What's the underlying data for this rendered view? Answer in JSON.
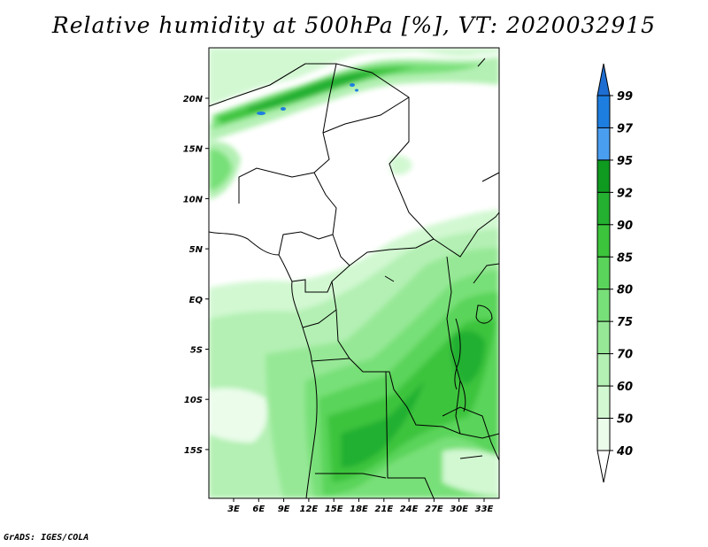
{
  "title": "Relative humidity at 500hPa [%], VT: 2020032915",
  "credit": "GrADS: IGES/COLA",
  "map": {
    "lat_labels": [
      "20N",
      "15N",
      "10N",
      "5N",
      "EQ",
      "5S",
      "10S",
      "15S"
    ],
    "lon_labels": [
      "3E",
      "6E",
      "9E",
      "12E",
      "15E",
      "18E",
      "21E",
      "24E",
      "27E",
      "30E",
      "33E"
    ]
  },
  "colorbar": {
    "labels": [
      "99",
      "97",
      "95",
      "92",
      "90",
      "85",
      "80",
      "75",
      "70",
      "60",
      "50",
      "40"
    ],
    "colors": [
      "#1e6ed2",
      "#1e7ee0",
      "#4a9ef0",
      "#0f9a20",
      "#24b030",
      "#3cc43c",
      "#5ad45a",
      "#78e078",
      "#96e896",
      "#b4f0b4",
      "#d2f8d2",
      "#ebfceb"
    ]
  }
}
